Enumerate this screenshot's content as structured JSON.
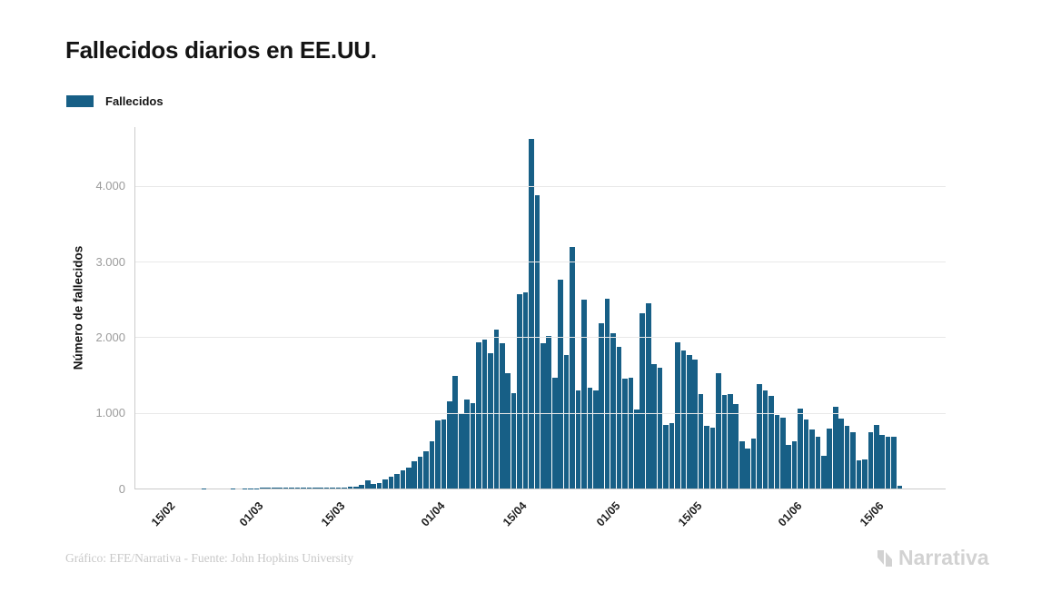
{
  "title": "Fallecidos diarios en EE.UU.",
  "legend": {
    "label": "Fallecidos",
    "swatch_color": "#175f86"
  },
  "footer": {
    "credit": "Gráfico: EFE/Narrativa - Fuente: John Hopkins University"
  },
  "watermark": {
    "name": "Narrativa"
  },
  "chart_data": {
    "type": "bar",
    "title": "Fallecidos diarios en EE.UU.",
    "ylabel": "Número de fallecidos",
    "xlabel": "",
    "legend_entries": [
      "Fallecidos"
    ],
    "legend_position": "top-left",
    "grid": "horizontal",
    "bar_color": "#175f86",
    "ylim": [
      0,
      4780
    ],
    "y_ticks": [
      {
        "label": "0",
        "value": 0
      },
      {
        "label": "1.000",
        "value": 1000
      },
      {
        "label": "2.000",
        "value": 2000
      },
      {
        "label": "3.000",
        "value": 3000
      },
      {
        "label": "4.000",
        "value": 4000
      }
    ],
    "x_ticks": [
      {
        "label": "15/02",
        "index": 0
      },
      {
        "label": "01/03",
        "index": 15
      },
      {
        "label": "15/03",
        "index": 29
      },
      {
        "label": "01/04",
        "index": 46
      },
      {
        "label": "15/04",
        "index": 60
      },
      {
        "label": "01/05",
        "index": 76
      },
      {
        "label": "15/05",
        "index": 90
      },
      {
        "label": "01/06",
        "index": 107
      },
      {
        "label": "15/06",
        "index": 121
      }
    ],
    "series_name": "Fallecidos",
    "start_label": "15/02",
    "values": [
      0,
      0,
      0,
      0,
      0,
      0,
      2,
      0,
      0,
      0,
      0,
      3,
      0,
      2,
      3,
      4,
      8,
      12,
      8,
      12,
      10,
      8,
      12,
      9,
      14,
      11,
      16,
      13,
      18,
      15,
      18,
      22,
      28,
      45,
      110,
      55,
      75,
      117,
      155,
      190,
      240,
      275,
      360,
      420,
      495,
      625,
      900,
      910,
      1150,
      1490,
      1000,
      1180,
      1130,
      1935,
      1965,
      1785,
      2105,
      1920,
      1520,
      1260,
      2570,
      2600,
      4620,
      3880,
      1920,
      2020,
      1460,
      2760,
      1760,
      3200,
      1300,
      2500,
      1330,
      1300,
      2190,
      2510,
      2050,
      1870,
      1450,
      1470,
      1050,
      2320,
      2450,
      1650,
      1600,
      835,
      870,
      1930,
      1830,
      1770,
      1700,
      1250,
      830,
      810,
      1530,
      1240,
      1250,
      1120,
      625,
      530,
      665,
      1385,
      1295,
      1220,
      975,
      940,
      580,
      625,
      1060,
      910,
      785,
      685,
      430,
      790,
      1080,
      920,
      825,
      745,
      370,
      380,
      745,
      845,
      705,
      685,
      690,
      35
    ]
  }
}
